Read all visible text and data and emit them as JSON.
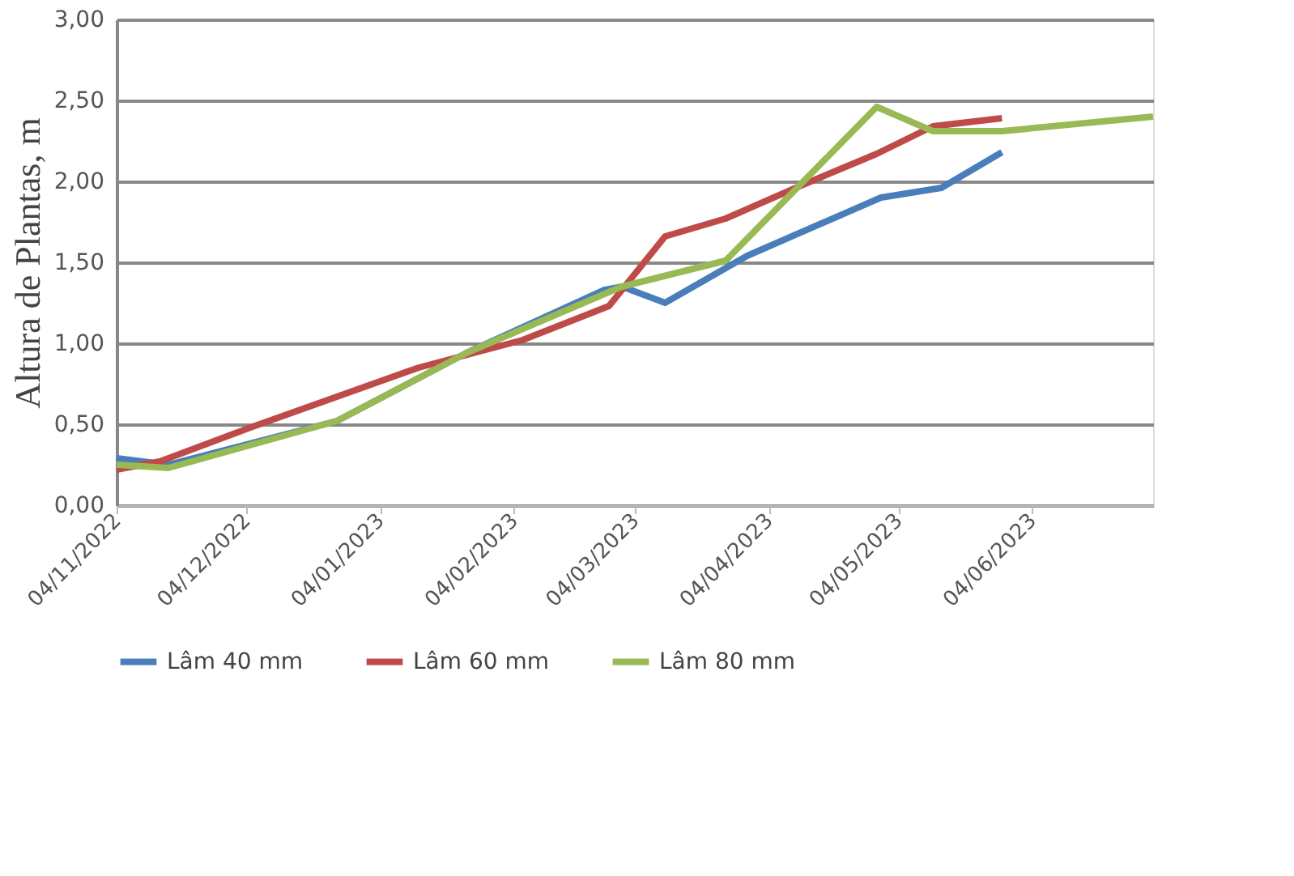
{
  "chart_data": {
    "type": "line",
    "ylabel": "Altura de Plantas, m",
    "xlim": [
      "2022-11-04",
      "2023-07-02"
    ],
    "xticks": [
      {
        "value": "2022-11-04",
        "label": "04/11/2022"
      },
      {
        "value": "2022-12-04",
        "label": "04/12/2022"
      },
      {
        "value": "2023-01-04",
        "label": "04/01/2023"
      },
      {
        "value": "2023-02-04",
        "label": "04/02/2023"
      },
      {
        "value": "2023-03-04",
        "label": "04/03/2023"
      },
      {
        "value": "2023-04-04",
        "label": "04/04/2023"
      },
      {
        "value": "2023-05-04",
        "label": "04/05/2023"
      },
      {
        "value": "2023-06-04",
        "label": "04/06/2023"
      }
    ],
    "ylim": [
      0,
      3
    ],
    "yticks": [
      {
        "value": 0,
        "label": "0,00"
      },
      {
        "value": 0.5,
        "label": "0,50"
      },
      {
        "value": 1,
        "label": "1,00"
      },
      {
        "value": 1.5,
        "label": "1,50"
      },
      {
        "value": 2,
        "label": "2,00"
      },
      {
        "value": 2.5,
        "label": "2,50"
      },
      {
        "value": 3,
        "label": "3,00"
      }
    ],
    "grid": "y",
    "legend": "bottom",
    "marker": "none",
    "line_style": "solid",
    "series": [
      {
        "name": "Lâm 40 mm",
        "color": "#4a7ebb",
        "x": [
          "2022-11-04",
          "2022-11-16",
          "2022-12-25",
          "2023-01-24",
          "2023-02-25",
          "2023-03-01",
          "2023-03-11",
          "2023-03-30",
          "2023-04-30",
          "2023-05-14",
          "2023-05-28"
        ],
        "values": [
          0.29,
          0.25,
          0.52,
          0.94,
          1.33,
          1.35,
          1.25,
          1.54,
          1.9,
          1.96,
          2.18
        ]
      },
      {
        "name": "Lâm 60 mm",
        "color": "#be4b48",
        "x": [
          "2022-11-04",
          "2022-11-14",
          "2022-12-05",
          "2023-01-13",
          "2023-02-06",
          "2023-02-26",
          "2023-03-11",
          "2023-03-25",
          "2023-04-12",
          "2023-04-29",
          "2023-05-12",
          "2023-05-28"
        ],
        "values": [
          0.22,
          0.27,
          0.48,
          0.85,
          1.02,
          1.23,
          1.66,
          1.77,
          1.98,
          2.17,
          2.34,
          2.39
        ]
      },
      {
        "name": "Lâm 80 mm",
        "color": "#98b954",
        "x": [
          "2022-11-04",
          "2022-11-16",
          "2022-12-25",
          "2023-01-24",
          "2023-03-01",
          "2023-03-25",
          "2023-04-29",
          "2023-05-12",
          "2023-05-28",
          "2023-07-02"
        ],
        "values": [
          0.25,
          0.23,
          0.52,
          0.94,
          1.35,
          1.51,
          2.46,
          2.31,
          2.31,
          2.4
        ]
      }
    ]
  }
}
